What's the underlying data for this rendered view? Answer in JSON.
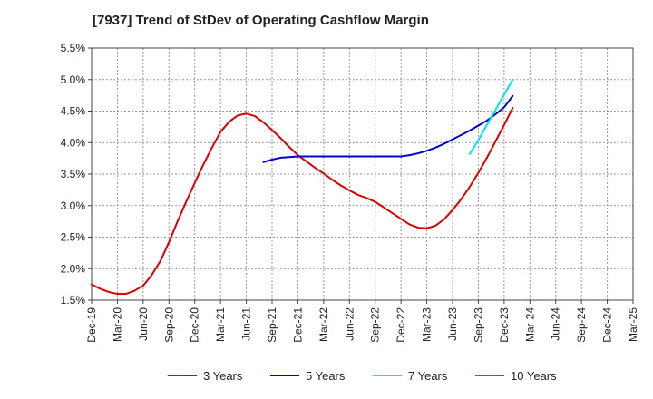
{
  "chart_data": {
    "type": "line",
    "title": "[7937]  Trend of StDev of Operating Cashflow Margin",
    "xlabel": "",
    "ylabel": "",
    "ylim": [
      1.5,
      5.5
    ],
    "yticks": [
      "1.5%",
      "2.0%",
      "2.5%",
      "3.0%",
      "3.5%",
      "4.0%",
      "4.5%",
      "5.0%",
      "5.5%"
    ],
    "categories": [
      "Dec-19",
      "Mar-20",
      "Jun-20",
      "Sep-20",
      "Dec-20",
      "Mar-21",
      "Jun-21",
      "Sep-21",
      "Dec-21",
      "Mar-22",
      "Jun-22",
      "Sep-22",
      "Dec-22",
      "Mar-23",
      "Jun-23",
      "Sep-23",
      "Dec-23",
      "Mar-24",
      "Jun-24",
      "Sep-24",
      "Dec-24",
      "Mar-25"
    ],
    "grid": true,
    "legend_position": "bottom",
    "series": [
      {
        "name": "3 Years",
        "color": "#dd0000",
        "points": [
          [
            "Dec-19",
            1.75
          ],
          [
            "Jan-20",
            1.68
          ],
          [
            "Feb-20",
            1.63
          ],
          [
            "Mar-20",
            1.6
          ],
          [
            "Apr-20",
            1.6
          ],
          [
            "May-20",
            1.65
          ],
          [
            "Jun-20",
            1.73
          ],
          [
            "Jul-20",
            1.9
          ],
          [
            "Aug-20",
            2.12
          ],
          [
            "Sep-20",
            2.42
          ],
          [
            "Oct-20",
            2.75
          ],
          [
            "Nov-20",
            3.06
          ],
          [
            "Dec-20",
            3.36
          ],
          [
            "Jan-21",
            3.65
          ],
          [
            "Feb-21",
            3.92
          ],
          [
            "Mar-21",
            4.17
          ],
          [
            "Apr-21",
            4.33
          ],
          [
            "May-21",
            4.43
          ],
          [
            "Jun-21",
            4.46
          ],
          [
            "Jul-21",
            4.42
          ],
          [
            "Aug-21",
            4.32
          ],
          [
            "Sep-21",
            4.2
          ],
          [
            "Oct-21",
            4.07
          ],
          [
            "Nov-21",
            3.93
          ],
          [
            "Dec-21",
            3.8
          ],
          [
            "Jan-22",
            3.7
          ],
          [
            "Feb-22",
            3.6
          ],
          [
            "Mar-22",
            3.51
          ],
          [
            "Apr-22",
            3.41
          ],
          [
            "May-22",
            3.32
          ],
          [
            "Jun-22",
            3.24
          ],
          [
            "Jul-22",
            3.17
          ],
          [
            "Aug-22",
            3.12
          ],
          [
            "Sep-22",
            3.06
          ],
          [
            "Oct-22",
            2.97
          ],
          [
            "Nov-22",
            2.88
          ],
          [
            "Dec-22",
            2.79
          ],
          [
            "Jan-23",
            2.7
          ],
          [
            "Feb-23",
            2.65
          ],
          [
            "Mar-23",
            2.64
          ],
          [
            "Apr-23",
            2.68
          ],
          [
            "May-23",
            2.78
          ],
          [
            "Jun-23",
            2.93
          ],
          [
            "Jul-23",
            3.1
          ],
          [
            "Aug-23",
            3.3
          ],
          [
            "Sep-23",
            3.52
          ],
          [
            "Oct-23",
            3.76
          ],
          [
            "Nov-23",
            4.02
          ],
          [
            "Dec-23",
            4.28
          ],
          [
            "Jan-24",
            4.55
          ]
        ]
      },
      {
        "name": "5 Years",
        "color": "#0000cc",
        "points": [
          [
            "Aug-21",
            3.69
          ],
          [
            "Sep-21",
            3.73
          ],
          [
            "Oct-21",
            3.76
          ],
          [
            "Nov-21",
            3.77
          ],
          [
            "Dec-21",
            3.78
          ],
          [
            "Jan-22",
            3.78
          ],
          [
            "Feb-22",
            3.78
          ],
          [
            "Mar-22",
            3.78
          ],
          [
            "Apr-22",
            3.78
          ],
          [
            "May-22",
            3.78
          ],
          [
            "Jun-22",
            3.78
          ],
          [
            "Jul-22",
            3.78
          ],
          [
            "Aug-22",
            3.78
          ],
          [
            "Sep-22",
            3.78
          ],
          [
            "Oct-22",
            3.78
          ],
          [
            "Nov-22",
            3.78
          ],
          [
            "Dec-22",
            3.78
          ],
          [
            "Jan-23",
            3.8
          ],
          [
            "Feb-23",
            3.83
          ],
          [
            "Mar-23",
            3.87
          ],
          [
            "Apr-23",
            3.92
          ],
          [
            "May-23",
            3.98
          ],
          [
            "Jun-23",
            4.05
          ],
          [
            "Jul-23",
            4.12
          ],
          [
            "Aug-23",
            4.19
          ],
          [
            "Sep-23",
            4.27
          ],
          [
            "Oct-23",
            4.35
          ],
          [
            "Nov-23",
            4.45
          ],
          [
            "Dec-23",
            4.56
          ],
          [
            "Jan-24",
            4.74
          ]
        ]
      },
      {
        "name": "7 Years",
        "color": "#00e5ee",
        "points": [
          [
            "Aug-23",
            3.82
          ],
          [
            "Sep-23",
            4.04
          ],
          [
            "Oct-23",
            4.28
          ],
          [
            "Nov-23",
            4.52
          ],
          [
            "Dec-23",
            4.76
          ],
          [
            "Jan-24",
            5.0
          ]
        ]
      },
      {
        "name": "10 Years",
        "color": "#228b22",
        "points": []
      }
    ]
  }
}
